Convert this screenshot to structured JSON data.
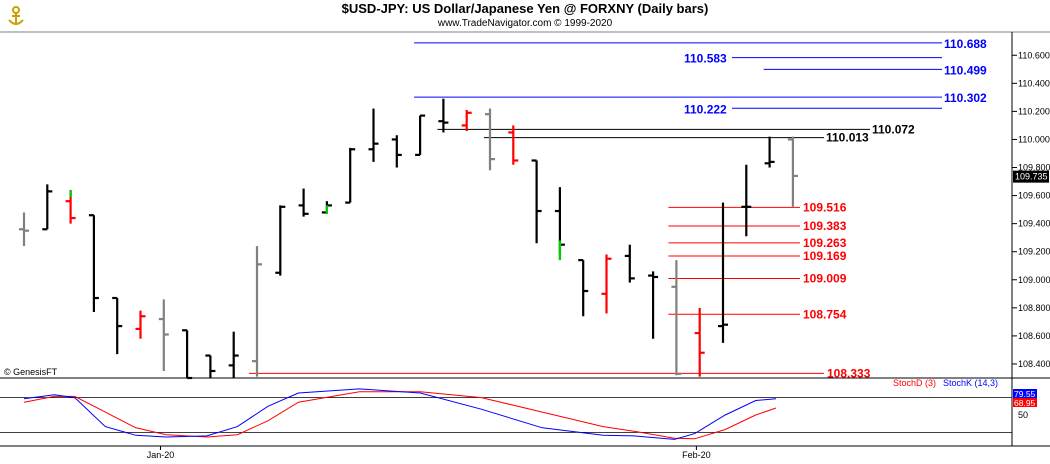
{
  "header": {
    "title": "$USD-JPY:  US Dollar/Japanese Yen @ FORXNY  (Daily bars)",
    "subtitle": "www.TradeNavigator.com © 1999-2020",
    "watermark": "© GenesisFT"
  },
  "colors": {
    "up": "#000000",
    "down": "#ff0000",
    "neutral": "#808080",
    "bullish_highlight": "#00cc00",
    "projection": "#0000ff",
    "retracement": "#ff0000",
    "stochD": "#ff0000",
    "stochK": "#0000ff"
  },
  "chart_data": {
    "type": "ohlc",
    "title": "$USD-JPY:  US Dollar/Japanese Yen @ FORXNY  (Daily bars)",
    "ylim": [
      108.3,
      110.78
    ],
    "y_ticks": [
      "110.600",
      "110.400",
      "110.200",
      "110.000",
      "109.800",
      "109.600",
      "109.400",
      "109.200",
      "109.000",
      "108.800",
      "108.600",
      "108.400"
    ],
    "last_price": "109.735",
    "x_labels": [
      {
        "label": "Jan-20",
        "bar": 5
      },
      {
        "label": "Feb-20",
        "bar": 28
      }
    ],
    "bars": [
      {
        "o": 109.36,
        "h": 109.48,
        "l": 109.24,
        "c": 109.35,
        "color": "neutral"
      },
      {
        "o": 109.36,
        "h": 109.68,
        "l": 109.36,
        "c": 109.63,
        "color": "up"
      },
      {
        "o": 109.56,
        "h": 109.64,
        "l": 109.4,
        "c": 109.44,
        "color": "down"
      },
      {
        "o": 109.46,
        "h": 109.46,
        "l": 108.77,
        "c": 108.87,
        "color": "up"
      },
      {
        "o": 108.87,
        "h": 108.87,
        "l": 108.47,
        "c": 108.67,
        "color": "up"
      },
      {
        "o": 108.65,
        "h": 108.78,
        "l": 108.58,
        "c": 108.74,
        "color": "down"
      },
      {
        "o": 108.72,
        "h": 108.86,
        "l": 108.35,
        "c": 108.61,
        "color": "neutral"
      },
      {
        "o": 108.64,
        "h": 108.64,
        "l": 108.3,
        "c": 108.3,
        "color": "up"
      },
      {
        "o": 108.46,
        "h": 108.46,
        "l": 108.3,
        "c": 108.35,
        "color": "up"
      },
      {
        "o": 108.39,
        "h": 108.63,
        "l": 108.3,
        "c": 108.46,
        "color": "up"
      },
      {
        "o": 108.42,
        "h": 109.24,
        "l": 108.31,
        "c": 109.11,
        "color": "neutral"
      },
      {
        "o": 109.05,
        "h": 109.53,
        "l": 109.03,
        "c": 109.52,
        "color": "up"
      },
      {
        "o": 109.53,
        "h": 109.65,
        "l": 109.45,
        "c": 109.47,
        "color": "up"
      },
      {
        "o": 109.48,
        "h": 109.56,
        "l": 109.47,
        "c": 109.53,
        "color": "up"
      },
      {
        "o": 109.55,
        "h": 109.94,
        "l": 109.55,
        "c": 109.93,
        "color": "up"
      },
      {
        "o": 109.93,
        "h": 110.22,
        "l": 109.84,
        "c": 109.97,
        "color": "up"
      },
      {
        "o": 110.0,
        "h": 110.03,
        "l": 109.8,
        "c": 109.89,
        "color": "up"
      },
      {
        "o": 109.89,
        "h": 110.17,
        "l": 109.89,
        "c": 110.17,
        "color": "up"
      },
      {
        "o": 110.13,
        "h": 110.29,
        "l": 110.05,
        "c": 110.12,
        "color": "up"
      },
      {
        "o": 110.1,
        "h": 110.21,
        "l": 110.06,
        "c": 110.19,
        "color": "down"
      },
      {
        "o": 110.18,
        "h": 110.22,
        "l": 109.78,
        "c": 109.86,
        "color": "neutral"
      },
      {
        "o": 110.05,
        "h": 110.1,
        "l": 109.82,
        "c": 109.85,
        "color": "down"
      },
      {
        "o": 109.85,
        "h": 109.85,
        "l": 109.26,
        "c": 109.49,
        "color": "up"
      },
      {
        "o": 109.49,
        "h": 109.66,
        "l": 109.18,
        "c": 109.25,
        "color": "up"
      },
      {
        "o": 109.14,
        "h": 109.14,
        "l": 108.74,
        "c": 108.92,
        "color": "up"
      },
      {
        "o": 108.9,
        "h": 109.18,
        "l": 108.76,
        "c": 109.15,
        "color": "down"
      },
      {
        "o": 109.17,
        "h": 109.25,
        "l": 108.98,
        "c": 109.01,
        "color": "up"
      },
      {
        "o": 109.03,
        "h": 109.06,
        "l": 108.58,
        "c": 109.02,
        "color": "up"
      },
      {
        "o": 108.95,
        "h": 109.14,
        "l": 108.32,
        "c": 108.33,
        "color": "neutral"
      },
      {
        "o": 108.62,
        "h": 108.8,
        "l": 108.31,
        "c": 108.48,
        "color": "down"
      },
      {
        "o": 108.67,
        "h": 109.55,
        "l": 108.55,
        "c": 108.68,
        "color": "up"
      },
      {
        "o": 109.52,
        "h": 109.82,
        "l": 109.31,
        "c": 109.52,
        "color": "up"
      },
      {
        "o": 109.83,
        "h": 110.02,
        "l": 109.8,
        "c": 109.84,
        "color": "up"
      },
      {
        "o": 110.0,
        "h": 110.02,
        "l": 109.52,
        "c": 109.74,
        "color": "neutral"
      }
    ],
    "green_marks": [
      {
        "bar": 2,
        "from": 109.59,
        "to": 109.64
      },
      {
        "bar": 13,
        "from": 109.47,
        "to": 109.53
      },
      {
        "bar": 23,
        "from": 109.14,
        "to": 109.28
      }
    ],
    "blue_lines": [
      {
        "label": "110.688",
        "value": 110.688,
        "from_bar": 17
      },
      {
        "label": "110.583",
        "value": 110.583,
        "from_bar": 29
      },
      {
        "label": "110.499",
        "value": 110.499,
        "from_bar": 32
      },
      {
        "label": "110.302",
        "value": 110.302,
        "from_bar": 17
      },
      {
        "label": "110.222",
        "value": 110.222,
        "from_bar": 29
      }
    ],
    "black_lines": [
      {
        "label": "110.072",
        "value": 110.072,
        "from_bar": 18
      },
      {
        "label": "110.013",
        "value": 110.013,
        "from_bar": 20
      }
    ],
    "red_lines": [
      {
        "label": "109.516",
        "value": 109.516,
        "from_bar": 28
      },
      {
        "label": "109.383",
        "value": 109.383,
        "from_bar": 28
      },
      {
        "label": "109.263",
        "value": 109.263,
        "from_bar": 28
      },
      {
        "label": "109.169",
        "value": 109.169,
        "from_bar": 28
      },
      {
        "label": "109.009",
        "value": 109.009,
        "from_bar": 28
      },
      {
        "label": "108.754",
        "value": 108.754,
        "from_bar": 28
      },
      {
        "label": "108.333",
        "value": 108.333,
        "from_bar": 10
      }
    ],
    "stochastic": {
      "labels": [
        "StochD (3)",
        "StochK (14,3)"
      ],
      "ylim": [
        0,
        100
      ],
      "ticks": [
        "50"
      ],
      "value_labels": [
        "79.55",
        "68.95"
      ],
      "K": [
        [
          0,
          78
        ],
        [
          3,
          85
        ],
        [
          5,
          80
        ],
        [
          8,
          30
        ],
        [
          11,
          15
        ],
        [
          14,
          12
        ],
        [
          18,
          14
        ],
        [
          21,
          30
        ],
        [
          24,
          65
        ],
        [
          27,
          88
        ],
        [
          33,
          95
        ],
        [
          39,
          88
        ],
        [
          45,
          60
        ],
        [
          51,
          28
        ],
        [
          57,
          15
        ],
        [
          60,
          14
        ],
        [
          64,
          8
        ],
        [
          66,
          18
        ],
        [
          69,
          50
        ],
        [
          72,
          75
        ],
        [
          74,
          78
        ]
      ],
      "D": [
        [
          0,
          72
        ],
        [
          3,
          82
        ],
        [
          5,
          82
        ],
        [
          8,
          55
        ],
        [
          11,
          28
        ],
        [
          14,
          16
        ],
        [
          18,
          12
        ],
        [
          21,
          16
        ],
        [
          24,
          40
        ],
        [
          27,
          72
        ],
        [
          33,
          90
        ],
        [
          39,
          90
        ],
        [
          45,
          80
        ],
        [
          51,
          55
        ],
        [
          57,
          30
        ],
        [
          60,
          22
        ],
        [
          64,
          10
        ],
        [
          66,
          9
        ],
        [
          69,
          25
        ],
        [
          72,
          50
        ],
        [
          74,
          62
        ]
      ]
    }
  }
}
